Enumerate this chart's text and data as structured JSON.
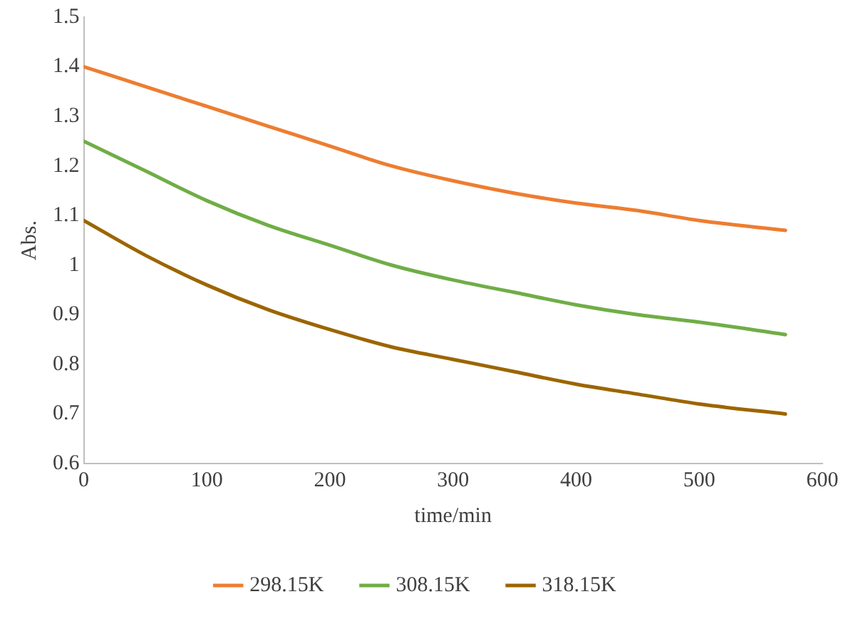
{
  "chart_data": {
    "type": "line",
    "xlabel": "time/min",
    "ylabel": "Abs.",
    "x": [
      0,
      50,
      100,
      150,
      200,
      250,
      300,
      350,
      400,
      450,
      500,
      570
    ],
    "series": [
      {
        "name": "298.15K",
        "color": "#ed7d31",
        "values": [
          1.4,
          1.36,
          1.32,
          1.28,
          1.24,
          1.2,
          1.17,
          1.145,
          1.125,
          1.11,
          1.09,
          1.07
        ]
      },
      {
        "name": "308.15K",
        "color": "#70ad47",
        "values": [
          1.25,
          1.19,
          1.13,
          1.08,
          1.04,
          1.0,
          0.97,
          0.945,
          0.92,
          0.9,
          0.885,
          0.86
        ]
      },
      {
        "name": "318.15K",
        "color": "#9c6500",
        "values": [
          1.09,
          1.02,
          0.96,
          0.91,
          0.87,
          0.835,
          0.81,
          0.785,
          0.76,
          0.74,
          0.72,
          0.7
        ]
      }
    ],
    "xlim": [
      0,
      600
    ],
    "xticks": [
      0,
      100,
      200,
      300,
      400,
      500,
      600
    ],
    "ylim": [
      0.6,
      1.5
    ],
    "yticks": [
      0.6,
      0.7,
      0.8,
      0.9,
      1,
      1.1,
      1.2,
      1.3,
      1.4,
      1.5
    ],
    "grid": false,
    "legend": "bottom",
    "marker": "none",
    "line_style": "solid"
  }
}
